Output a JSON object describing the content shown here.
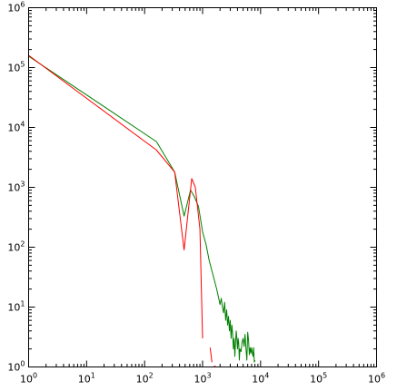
{
  "chart_data": {
    "type": "line",
    "title": "",
    "xlabel": "",
    "ylabel": "",
    "x_scale": "log",
    "y_scale": "log",
    "xlim": [
      1,
      1000000
    ],
    "ylim": [
      1,
      1000000
    ],
    "grid": false,
    "x_ticks": [
      {
        "value": 1,
        "base": "10",
        "exp": "0"
      },
      {
        "value": 10,
        "base": "10",
        "exp": "1"
      },
      {
        "value": 100,
        "base": "10",
        "exp": "2"
      },
      {
        "value": 1000,
        "base": "10",
        "exp": "3"
      },
      {
        "value": 10000,
        "base": "10",
        "exp": "4"
      },
      {
        "value": 100000,
        "base": "10",
        "exp": "5"
      },
      {
        "value": 1000000,
        "base": "10",
        "exp": "6"
      }
    ],
    "y_ticks": [
      {
        "value": 1,
        "base": "10",
        "exp": "0"
      },
      {
        "value": 10,
        "base": "10",
        "exp": "1"
      },
      {
        "value": 100,
        "base": "10",
        "exp": "2"
      },
      {
        "value": 1000,
        "base": "10",
        "exp": "3"
      },
      {
        "value": 10000,
        "base": "10",
        "exp": "4"
      },
      {
        "value": 100000,
        "base": "10",
        "exp": "5"
      },
      {
        "value": 1000000,
        "base": "10",
        "exp": "6"
      }
    ],
    "series": [
      {
        "color": "#008000",
        "segments": [
          [
            [
              1,
              155000
            ],
            [
              160,
              5800
            ],
            [
              330,
              1800
            ],
            [
              480,
              330
            ],
            [
              620,
              900
            ],
            [
              720,
              700
            ],
            [
              850,
              480
            ],
            [
              1000,
              180
            ],
            [
              1150,
              110
            ],
            [
              1300,
              60
            ],
            [
              1450,
              40
            ],
            [
              1600,
              28
            ],
            [
              1750,
              20
            ],
            [
              1900,
              14
            ],
            [
              2000,
              11
            ],
            [
              2100,
              14
            ],
            [
              2200,
              10
            ],
            [
              2300,
              8
            ],
            [
              2400,
              12
            ],
            [
              2500,
              6
            ],
            [
              2600,
              9
            ],
            [
              2700,
              5
            ],
            [
              2800,
              7
            ],
            [
              2900,
              4
            ],
            [
              3000,
              6
            ],
            [
              3100,
              3
            ],
            [
              3200,
              5
            ],
            [
              3300,
              3.5
            ],
            [
              3400,
              2
            ],
            [
              3500,
              3
            ],
            [
              3600,
              1.5
            ],
            [
              3700,
              2.5
            ],
            [
              3800,
              4
            ],
            [
              3900,
              3
            ],
            [
              4000,
              2
            ],
            [
              4100,
              3
            ],
            [
              4200,
              2.5
            ],
            [
              4300,
              1.3
            ],
            [
              4400,
              2
            ],
            [
              4600,
              1.8
            ],
            [
              4800,
              2.6
            ],
            [
              5000,
              3
            ],
            [
              5200,
              2.2
            ],
            [
              5400,
              3.5
            ],
            [
              5600,
              2
            ],
            [
              5800,
              1.3
            ],
            [
              6000,
              3.8
            ],
            [
              6200,
              2.8
            ],
            [
              6400,
              1.6
            ],
            [
              6600,
              2.1
            ],
            [
              6800,
              1.7
            ],
            [
              7000,
              2.1
            ],
            [
              7200,
              1.7
            ],
            [
              7400,
              1.5
            ],
            [
              7600,
              2.1
            ],
            [
              7800,
              1.2
            ],
            [
              8000,
              1.3
            ]
          ]
        ]
      },
      {
        "color": "#ff0000",
        "segments": [
          [
            [
              1,
              160000
            ],
            [
              160,
              4200
            ],
            [
              330,
              1800
            ],
            [
              480,
              90
            ],
            [
              650,
              1400
            ],
            [
              750,
              1000
            ],
            [
              900,
              200
            ],
            [
              1000,
              3
            ]
          ],
          [
            [
              1350,
              2.1
            ],
            [
              1450,
              1.2
            ]
          ],
          [
            [
              1580,
              1.05
            ],
            [
              1700,
              1.0
            ]
          ]
        ]
      }
    ]
  }
}
